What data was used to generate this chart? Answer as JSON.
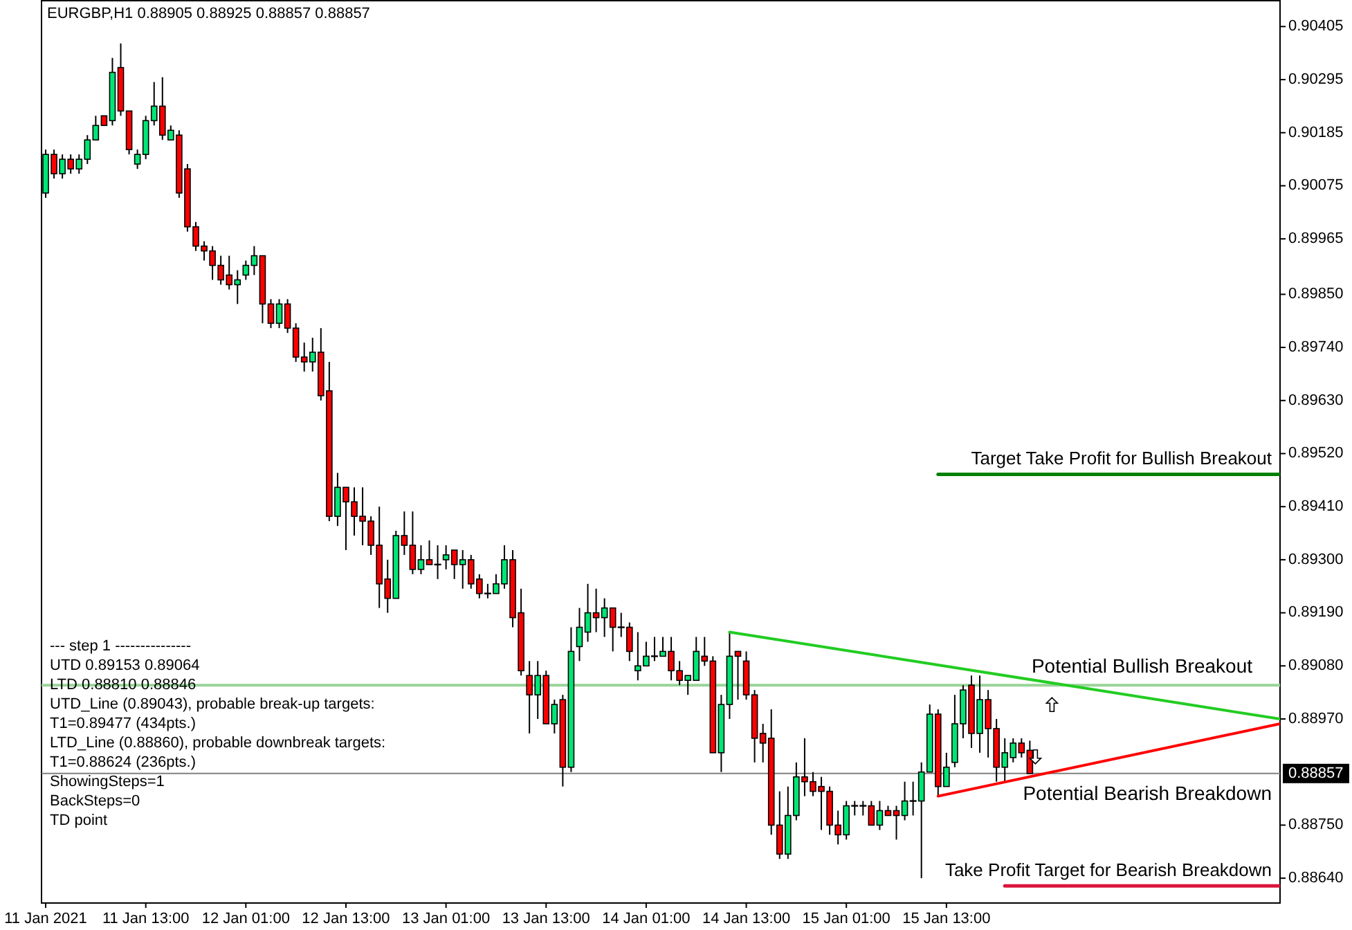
{
  "chart_data": {
    "type": "candlestick",
    "title": "EURGBP,H1  0.88905 0.88925 0.88857 0.88857",
    "x": [
      "2021-01-11T01:00",
      "2021-01-11T02:00",
      "2021-01-11T03:00",
      "2021-01-11T04:00",
      "2021-01-11T05:00",
      "2021-01-11T06:00",
      "2021-01-11T07:00",
      "2021-01-11T08:00",
      "2021-01-11T09:00",
      "2021-01-11T10:00",
      "2021-01-11T11:00",
      "2021-01-11T12:00",
      "2021-01-11T13:00",
      "2021-01-11T14:00",
      "2021-01-11T15:00",
      "2021-01-11T16:00",
      "2021-01-11T17:00",
      "2021-01-11T18:00",
      "2021-01-11T19:00",
      "2021-01-11T20:00",
      "2021-01-11T21:00",
      "2021-01-11T22:00",
      "2021-01-11T23:00",
      "2021-01-12T00:00",
      "2021-01-12T01:00",
      "2021-01-12T02:00",
      "2021-01-12T03:00",
      "2021-01-12T04:00",
      "2021-01-12T05:00",
      "2021-01-12T06:00",
      "2021-01-12T07:00",
      "2021-01-12T08:00",
      "2021-01-12T09:00",
      "2021-01-12T10:00",
      "2021-01-12T11:00",
      "2021-01-12T12:00",
      "2021-01-12T13:00",
      "2021-01-12T14:00",
      "2021-01-12T15:00",
      "2021-01-12T16:00",
      "2021-01-12T17:00",
      "2021-01-12T18:00",
      "2021-01-12T19:00",
      "2021-01-12T20:00",
      "2021-01-12T21:00",
      "2021-01-12T22:00",
      "2021-01-12T23:00",
      "2021-01-13T00:00",
      "2021-01-13T01:00",
      "2021-01-13T02:00",
      "2021-01-13T03:00",
      "2021-01-13T04:00",
      "2021-01-13T05:00",
      "2021-01-13T06:00",
      "2021-01-13T07:00",
      "2021-01-13T08:00",
      "2021-01-13T09:00",
      "2021-01-13T10:00",
      "2021-01-13T11:00",
      "2021-01-13T12:00",
      "2021-01-13T13:00",
      "2021-01-13T14:00",
      "2021-01-13T15:00",
      "2021-01-13T16:00",
      "2021-01-13T17:00",
      "2021-01-13T18:00",
      "2021-01-13T19:00",
      "2021-01-13T20:00",
      "2021-01-13T21:00",
      "2021-01-13T22:00",
      "2021-01-13T23:00",
      "2021-01-14T00:00",
      "2021-01-14T01:00",
      "2021-01-14T02:00",
      "2021-01-14T03:00",
      "2021-01-14T04:00",
      "2021-01-14T05:00",
      "2021-01-14T06:00",
      "2021-01-14T07:00",
      "2021-01-14T08:00",
      "2021-01-14T09:00",
      "2021-01-14T10:00",
      "2021-01-14T11:00",
      "2021-01-14T12:00",
      "2021-01-14T13:00",
      "2021-01-14T14:00",
      "2021-01-14T15:00",
      "2021-01-14T16:00",
      "2021-01-14T17:00",
      "2021-01-14T18:00",
      "2021-01-14T19:00",
      "2021-01-14T20:00",
      "2021-01-14T21:00",
      "2021-01-14T22:00",
      "2021-01-14T23:00",
      "2021-01-15T00:00",
      "2021-01-15T01:00",
      "2021-01-15T02:00",
      "2021-01-15T03:00",
      "2021-01-15T04:00",
      "2021-01-15T05:00",
      "2021-01-15T06:00",
      "2021-01-15T07:00",
      "2021-01-15T08:00",
      "2021-01-15T09:00",
      "2021-01-15T10:00",
      "2021-01-15T11:00",
      "2021-01-15T12:00",
      "2021-01-15T13:00",
      "2021-01-15T14:00",
      "2021-01-15T15:00",
      "2021-01-15T16:00",
      "2021-01-15T17:00",
      "2021-01-15T18:00",
      "2021-01-15T19:00",
      "2021-01-15T20:00",
      "2021-01-15T21:00",
      "2021-01-15T22:00",
      "2021-01-15T23:00"
    ],
    "ohlc": [
      [
        0.9006,
        0.9015,
        0.9005,
        0.9014
      ],
      [
        0.9014,
        0.9015,
        0.9009,
        0.901
      ],
      [
        0.901,
        0.9014,
        0.9009,
        0.9013
      ],
      [
        0.9013,
        0.9014,
        0.901,
        0.9011
      ],
      [
        0.9011,
        0.9014,
        0.901,
        0.9013
      ],
      [
        0.9013,
        0.9018,
        0.9012,
        0.9017
      ],
      [
        0.9017,
        0.9022,
        0.9017,
        0.902
      ],
      [
        0.9022,
        0.9022,
        0.902,
        0.902
      ],
      [
        0.9021,
        0.9034,
        0.902,
        0.9031
      ],
      [
        0.9032,
        0.9037,
        0.9022,
        0.9023
      ],
      [
        0.9023,
        0.9023,
        0.9014,
        0.9015
      ],
      [
        0.9012,
        0.9015,
        0.9011,
        0.9014
      ],
      [
        0.9014,
        0.9022,
        0.9013,
        0.9021
      ],
      [
        0.9021,
        0.9029,
        0.902,
        0.9024
      ],
      [
        0.9024,
        0.903,
        0.9017,
        0.9018
      ],
      [
        0.9017,
        0.902,
        0.9017,
        0.9019
      ],
      [
        0.9018,
        0.9019,
        0.9005,
        0.9006
      ],
      [
        0.9011,
        0.9012,
        0.8998,
        0.8999
      ],
      [
        0.8999,
        0.9,
        0.8994,
        0.8995
      ],
      [
        0.8995,
        0.8996,
        0.8992,
        0.8994
      ],
      [
        0.8994,
        0.8995,
        0.8988,
        0.8991
      ],
      [
        0.8991,
        0.8993,
        0.8987,
        0.8988
      ],
      [
        0.8989,
        0.8993,
        0.8986,
        0.8987
      ],
      [
        0.8987,
        0.899,
        0.8983,
        0.8988
      ],
      [
        0.8989,
        0.8992,
        0.8988,
        0.8991
      ],
      [
        0.8991,
        0.8995,
        0.8989,
        0.8993
      ],
      [
        0.8993,
        0.8993,
        0.8979,
        0.8983
      ],
      [
        0.8983,
        0.8984,
        0.8978,
        0.8979
      ],
      [
        0.8979,
        0.8984,
        0.8978,
        0.8983
      ],
      [
        0.8983,
        0.8984,
        0.8977,
        0.8978
      ],
      [
        0.8978,
        0.8979,
        0.8971,
        0.8972
      ],
      [
        0.8972,
        0.8975,
        0.8969,
        0.8971
      ],
      [
        0.8971,
        0.8976,
        0.8969,
        0.8973
      ],
      [
        0.8973,
        0.8978,
        0.8963,
        0.8964
      ],
      [
        0.8965,
        0.8971,
        0.8938,
        0.8939
      ],
      [
        0.8939,
        0.8948,
        0.8937,
        0.8945
      ],
      [
        0.8945,
        0.8945,
        0.8932,
        0.8942
      ],
      [
        0.8942,
        0.8945,
        0.8935,
        0.8939
      ],
      [
        0.8939,
        0.8945,
        0.8933,
        0.8938
      ],
      [
        0.8938,
        0.8939,
        0.8931,
        0.8933
      ],
      [
        0.8933,
        0.8941,
        0.892,
        0.8925
      ],
      [
        0.8926,
        0.893,
        0.8919,
        0.8922
      ],
      [
        0.8922,
        0.8936,
        0.8922,
        0.8935
      ],
      [
        0.8935,
        0.894,
        0.8931,
        0.8933
      ],
      [
        0.8933,
        0.894,
        0.8927,
        0.8928
      ],
      [
        0.8928,
        0.8933,
        0.8927,
        0.893
      ],
      [
        0.893,
        0.8934,
        0.8929,
        0.8929
      ],
      [
        0.8929,
        0.8933,
        0.8926,
        0.8929
      ],
      [
        0.893,
        0.8933,
        0.8928,
        0.8931
      ],
      [
        0.8932,
        0.8932,
        0.8926,
        0.8929
      ],
      [
        0.8929,
        0.8932,
        0.8924,
        0.893
      ],
      [
        0.893,
        0.8931,
        0.8924,
        0.8925
      ],
      [
        0.8926,
        0.8927,
        0.8922,
        0.8923
      ],
      [
        0.8923,
        0.8925,
        0.8922,
        0.8923
      ],
      [
        0.8923,
        0.8927,
        0.8923,
        0.8925
      ],
      [
        0.8925,
        0.8933,
        0.8924,
        0.893
      ],
      [
        0.893,
        0.8932,
        0.8916,
        0.8918
      ],
      [
        0.8919,
        0.8924,
        0.8906,
        0.8907
      ],
      [
        0.8906,
        0.8909,
        0.8894,
        0.8902
      ],
      [
        0.8902,
        0.8909,
        0.8897,
        0.8906
      ],
      [
        0.8906,
        0.8907,
        0.8896,
        0.8896
      ],
      [
        0.8896,
        0.8901,
        0.8894,
        0.89
      ],
      [
        0.8901,
        0.8902,
        0.8883,
        0.8887
      ],
      [
        0.8887,
        0.8916,
        0.8886,
        0.8911
      ],
      [
        0.8912,
        0.892,
        0.8909,
        0.8916
      ],
      [
        0.8915,
        0.8925,
        0.8913,
        0.8919
      ],
      [
        0.8919,
        0.8924,
        0.8915,
        0.8918
      ],
      [
        0.8918,
        0.8922,
        0.8914,
        0.892
      ],
      [
        0.892,
        0.892,
        0.8911,
        0.8916
      ],
      [
        0.8916,
        0.8919,
        0.8914,
        0.8916
      ],
      [
        0.8916,
        0.8917,
        0.8909,
        0.8911
      ],
      [
        0.8907,
        0.8915,
        0.8905,
        0.8908
      ],
      [
        0.8908,
        0.8913,
        0.8908,
        0.891
      ],
      [
        0.891,
        0.8914,
        0.8909,
        0.891
      ],
      [
        0.891,
        0.8914,
        0.891,
        0.8911
      ],
      [
        0.8911,
        0.8914,
        0.8905,
        0.8907
      ],
      [
        0.8907,
        0.8909,
        0.8904,
        0.8905
      ],
      [
        0.8905,
        0.8906,
        0.8902,
        0.8906
      ],
      [
        0.8905,
        0.8914,
        0.8905,
        0.8911
      ],
      [
        0.891,
        0.8914,
        0.8908,
        0.8909
      ],
      [
        0.8909,
        0.891,
        0.889,
        0.889
      ],
      [
        0.889,
        0.8902,
        0.8886,
        0.89
      ],
      [
        0.89,
        0.8915,
        0.8897,
        0.891
      ],
      [
        0.8911,
        0.8911,
        0.8901,
        0.891
      ],
      [
        0.8909,
        0.8911,
        0.8901,
        0.8902
      ],
      [
        0.8902,
        0.8903,
        0.8888,
        0.8893
      ],
      [
        0.8894,
        0.8896,
        0.8888,
        0.8892
      ],
      [
        0.8893,
        0.8899,
        0.8873,
        0.8875
      ],
      [
        0.8875,
        0.8882,
        0.8868,
        0.8869
      ],
      [
        0.8869,
        0.8883,
        0.8868,
        0.8877
      ],
      [
        0.8877,
        0.8888,
        0.8876,
        0.8885
      ],
      [
        0.8885,
        0.8893,
        0.8881,
        0.8884
      ],
      [
        0.8884,
        0.8886,
        0.8881,
        0.8882
      ],
      [
        0.8883,
        0.8885,
        0.8874,
        0.8882
      ],
      [
        0.8882,
        0.8883,
        0.8873,
        0.8875
      ],
      [
        0.8875,
        0.8878,
        0.8871,
        0.8873
      ],
      [
        0.8873,
        0.888,
        0.8872,
        0.8879
      ],
      [
        0.8879,
        0.888,
        0.8877,
        0.8879
      ],
      [
        0.8879,
        0.888,
        0.8877,
        0.8879
      ],
      [
        0.8879,
        0.888,
        0.8875,
        0.8875
      ],
      [
        0.8875,
        0.888,
        0.8874,
        0.8878
      ],
      [
        0.8878,
        0.8879,
        0.8877,
        0.8877
      ],
      [
        0.8878,
        0.8879,
        0.8872,
        0.8877
      ],
      [
        0.8877,
        0.8884,
        0.8876,
        0.888
      ],
      [
        0.888,
        0.8884,
        0.8877,
        0.888
      ],
      [
        0.888,
        0.8888,
        0.8864,
        0.8886
      ],
      [
        0.8886,
        0.89,
        0.8886,
        0.8898
      ],
      [
        0.8898,
        0.8899,
        0.8881,
        0.8883
      ],
      [
        0.8883,
        0.889,
        0.8883,
        0.8887
      ],
      [
        0.8888,
        0.8902,
        0.8887,
        0.8896
      ],
      [
        0.8896,
        0.8904,
        0.8893,
        0.8903
      ],
      [
        0.8904,
        0.8906,
        0.8891,
        0.8894
      ],
      [
        0.8894,
        0.8906,
        0.889,
        0.8901
      ],
      [
        0.8901,
        0.8903,
        0.8889,
        0.8895
      ],
      [
        0.8895,
        0.8897,
        0.8884,
        0.8887
      ],
      [
        0.8887,
        0.8893,
        0.8884,
        0.889
      ],
      [
        0.8889,
        0.8893,
        0.8888,
        0.8892
      ],
      [
        0.8892,
        0.8893,
        0.8889,
        0.889
      ],
      [
        0.88905,
        0.88925,
        0.88857,
        0.88857
      ]
    ],
    "colors": [
      "#00e676",
      "#ff0000",
      "#00e676",
      "#ff0000",
      "#00e676",
      "#00e676",
      "#00e676",
      "#ff0000",
      "#00e676",
      "#ff0000",
      "#ff0000",
      "#00e676",
      "#00e676",
      "#00e676",
      "#ff0000",
      "#00e676",
      "#ff0000",
      "#ff0000",
      "#ff0000",
      "#ff0000",
      "#ff0000",
      "#ff0000",
      "#ff0000",
      "#00e676",
      "#00e676",
      "#00e676",
      "#ff0000",
      "#ff0000",
      "#00e676",
      "#ff0000",
      "#ff0000",
      "#ff0000",
      "#00e676",
      "#ff0000",
      "#ff0000",
      "#00e676",
      "#ff0000",
      "#ff0000",
      "#ff0000",
      "#ff0000",
      "#ff0000",
      "#ff0000",
      "#00e676",
      "#ff0000",
      "#ff0000",
      "#00e676",
      "#ff0000",
      "#000000",
      "#00e676",
      "#ff0000",
      "#00e676",
      "#ff0000",
      "#ff0000",
      "#000000",
      "#00e676",
      "#00e676",
      "#ff0000",
      "#ff0000",
      "#ff0000",
      "#00e676",
      "#ff0000",
      "#00e676",
      "#ff0000",
      "#00e676",
      "#00e676",
      "#00e676",
      "#ff0000",
      "#00e676",
      "#ff0000",
      "#000000",
      "#ff0000",
      "#00e676",
      "#00e676",
      "#000000",
      "#00e676",
      "#ff0000",
      "#ff0000",
      "#00e676",
      "#00e676",
      "#ff0000",
      "#ff0000",
      "#00e676",
      "#00e676",
      "#ff0000",
      "#ff0000",
      "#ff0000",
      "#ff0000",
      "#ff0000",
      "#ff0000",
      "#00e676",
      "#00e676",
      "#ff0000",
      "#ff0000",
      "#ff0000",
      "#ff0000",
      "#ff0000",
      "#00e676",
      "#000000",
      "#000000",
      "#ff0000",
      "#00e676",
      "#ff0000",
      "#ff0000",
      "#00e676",
      "#000000",
      "#00e676",
      "#00e676",
      "#ff0000",
      "#00e676",
      "#00e676",
      "#00e676",
      "#ff0000",
      "#00e676",
      "#ff0000",
      "#ff0000",
      "#00e676",
      "#00e676",
      "#ff0000",
      "#ff0000"
    ],
    "series": [
      {
        "type": "line",
        "color": "#22cc22",
        "x": [
          "2021-01-14T11:00",
          "2021-01-17T05:00"
        ],
        "values": [
          0.8915,
          0.8897
        ]
      },
      {
        "type": "line",
        "color": "#ff0000",
        "x": [
          "2021-01-15T12:00",
          "2021-01-17T05:00"
        ],
        "values": [
          0.8881,
          0.8896
        ]
      },
      {
        "type": "line",
        "name": "Target Take Profit for Bullish Breakout",
        "color": "#008000",
        "x": [
          "2021-01-15T12:00",
          "2021-01-17T05:00"
        ],
        "values": [
          0.89477,
          0.89477
        ]
      },
      {
        "type": "line",
        "name": "Take Profit Target for Bearish Breakdown",
        "color": "#dc143c",
        "x": [
          "2021-01-15T20:00",
          "2021-01-17T05:00"
        ],
        "values": [
          0.88624,
          0.88624
        ]
      }
    ],
    "ref_lines": [
      {
        "axis": "y",
        "value": 0.8904,
        "label": "Potential Bullish Breakout",
        "color": "#98d498"
      },
      {
        "axis": "y",
        "value": 0.88857,
        "label": "0.88857",
        "color": "#808080"
      }
    ],
    "annotations": [
      "--- step 1 ---------------",
      "UTD 0.89153  0.89064",
      "LTD  0.88810  0.88846",
      "UTD_Line (0.89043), probable break-up targets:",
      "T1=0.89477 (434pts.)",
      "LTD_Line (0.88860), probable downbreak targets:",
      "T1=0.88624 (236pts.)",
      "ShowingSteps=1",
      "BackSteps=0",
      "TD point",
      "Potential Bearish Breakdown"
    ],
    "xlim": [
      "2021-01-11T00:30",
      "2021-01-17T05:00"
    ],
    "ylim": [
      0.8859,
      0.9046
    ],
    "xticks": [
      {
        "value": "2021-01-11T01:00",
        "label": "11 Jan 2021"
      },
      {
        "value": "2021-01-11T13:00",
        "label": "11 Jan 13:00"
      },
      {
        "value": "2021-01-12T01:00",
        "label": "12 Jan 01:00"
      },
      {
        "value": "2021-01-12T13:00",
        "label": "12 Jan 13:00"
      },
      {
        "value": "2021-01-13T01:00",
        "label": "13 Jan 01:00"
      },
      {
        "value": "2021-01-13T13:00",
        "label": "13 Jan 13:00"
      },
      {
        "value": "2021-01-14T01:00",
        "label": "14 Jan 01:00"
      },
      {
        "value": "2021-01-14T13:00",
        "label": "14 Jan 13:00"
      },
      {
        "value": "2021-01-15T01:00",
        "label": "15 Jan 01:00"
      },
      {
        "value": "2021-01-15T13:00",
        "label": "15 Jan 13:00"
      }
    ],
    "yticks": [
      0.90405,
      0.90295,
      0.90185,
      0.90075,
      0.89965,
      {
        "value": 0.8985,
        "label": "0.89850"
      },
      {
        "value": 0.8974,
        "label": "0.89740"
      },
      {
        "value": 0.8963,
        "label": "0.89630"
      },
      {
        "value": 0.8952,
        "label": "0.89520"
      },
      {
        "value": 0.8941,
        "label": "0.89410"
      },
      {
        "value": 0.893,
        "label": "0.89300"
      },
      {
        "value": 0.8919,
        "label": "0.89190"
      },
      {
        "value": 0.8908,
        "label": "0.89080"
      },
      {
        "value": 0.8897,
        "label": "0.88970"
      },
      {
        "value": 0.8875,
        "label": "0.88750"
      },
      {
        "value": 0.8864,
        "label": "0.88640"
      }
    ]
  }
}
